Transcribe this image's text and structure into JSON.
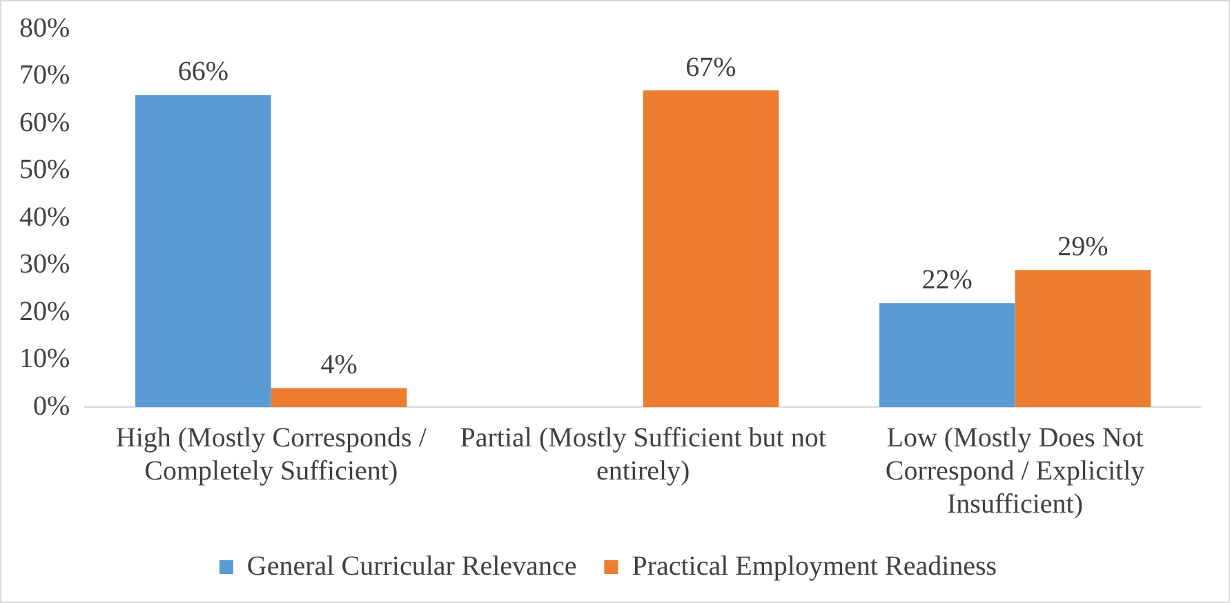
{
  "chart_data": {
    "type": "bar",
    "categories": [
      "High (Mostly Corresponds / Completely Sufficient)",
      "Partial (Mostly Sufficient but not entirely)",
      "Low (Mostly Does Not Correspond / Explicitly Insufficient)"
    ],
    "series": [
      {
        "name": "General Curricular Relevance",
        "color": "#5b9bd5",
        "values": [
          66,
          null,
          22
        ],
        "value_labels": [
          "66%",
          null,
          "22%"
        ]
      },
      {
        "name": "Practical Employment Readiness",
        "color": "#ed7d31",
        "values": [
          4,
          67,
          29
        ],
        "value_labels": [
          "4%",
          "67%",
          "29%"
        ]
      }
    ],
    "ylim": [
      0,
      80
    ],
    "yticks": [
      {
        "value": 0,
        "label": "0%"
      },
      {
        "value": 10,
        "label": "10%"
      },
      {
        "value": 20,
        "label": "20%"
      },
      {
        "value": 30,
        "label": "30%"
      },
      {
        "value": 40,
        "label": "40%"
      },
      {
        "value": 50,
        "label": "50%"
      },
      {
        "value": 60,
        "label": "60%"
      },
      {
        "value": 70,
        "label": "70%"
      },
      {
        "value": 80,
        "label": "80%"
      }
    ],
    "grid": false,
    "legend": "bottom"
  }
}
